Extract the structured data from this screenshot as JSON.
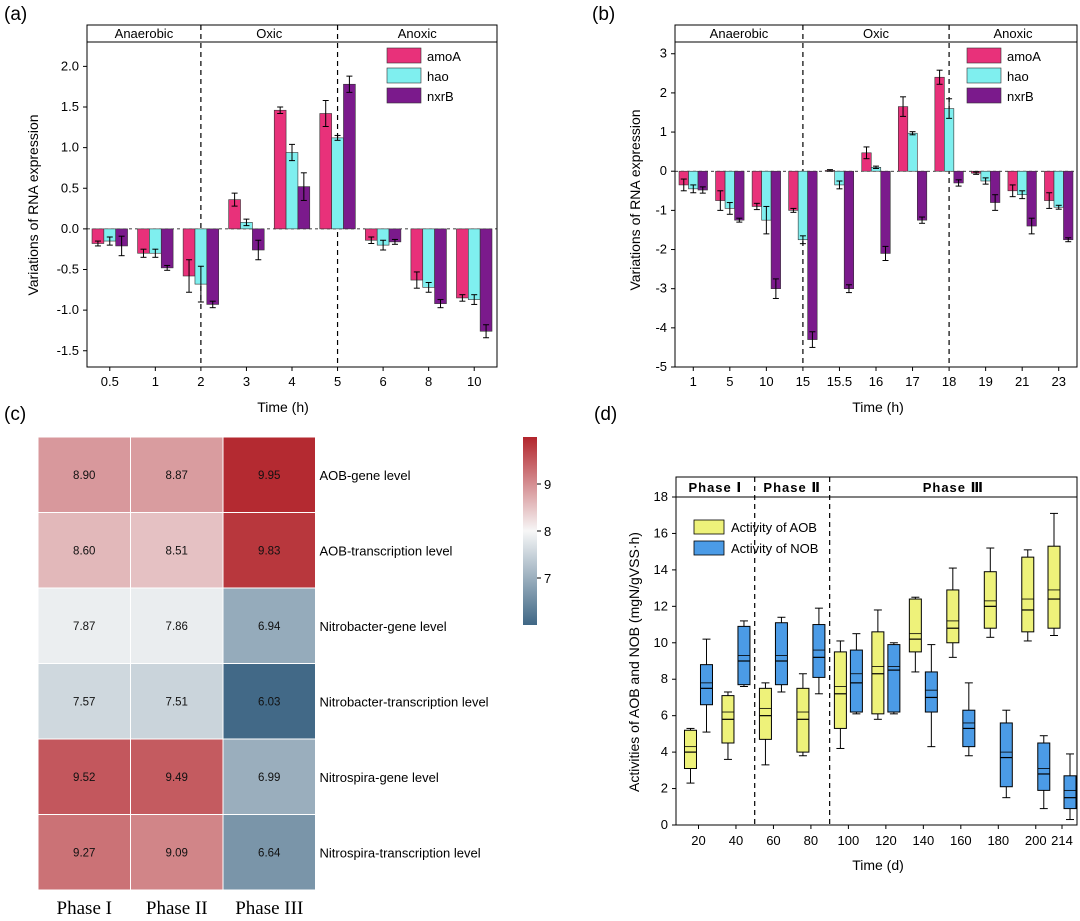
{
  "chart_data": [
    {
      "panel_label": "(a)",
      "type": "bar",
      "xlabel": "Time (h)",
      "ylabel": "Variations of RNA expression",
      "ylim": [
        -1.7,
        2.3
      ],
      "yticks": [
        -1.5,
        -1.0,
        -0.5,
        0.0,
        0.5,
        1.0,
        1.5,
        2.0
      ],
      "ytick_labels": [
        "-1.5",
        "-1.0",
        "-0.5",
        "0.0",
        "0.5",
        "1.0",
        "1.5",
        "2.0"
      ],
      "categories": [
        "0.5",
        "1",
        "2",
        "3",
        "4",
        "5",
        "6",
        "8",
        "10"
      ],
      "phases": [
        {
          "name": "Anaerobic",
          "start_index": 0,
          "end_index": 2
        },
        {
          "name": "Oxic",
          "start_index": 2,
          "end_index": 5
        },
        {
          "name": "Anoxic",
          "start_index": 5,
          "end_index": 8
        }
      ],
      "legend_position": "top-right",
      "series": [
        {
          "name": "amoA",
          "color": "#E8317A",
          "values": [
            -0.18,
            -0.3,
            -0.58,
            0.36,
            1.46,
            1.42,
            -0.14,
            -0.63,
            -0.85
          ],
          "errors": [
            0.03,
            0.05,
            0.2,
            0.08,
            0.04,
            0.16,
            0.04,
            0.1,
            0.04
          ]
        },
        {
          "name": "hao",
          "color": "#7FEFEF",
          "values": [
            -0.15,
            -0.3,
            -0.68,
            0.08,
            0.94,
            1.12,
            -0.2,
            -0.72,
            -0.87
          ],
          "errors": [
            0.05,
            0.05,
            0.22,
            0.04,
            0.1,
            0.03,
            0.06,
            0.06,
            0.06
          ]
        },
        {
          "name": "nxrB",
          "color": "#7B1A8C",
          "values": [
            -0.21,
            -0.48,
            -0.93,
            -0.26,
            0.52,
            1.78,
            -0.16,
            -0.92,
            -1.26
          ],
          "errors": [
            0.12,
            0.03,
            0.04,
            0.12,
            0.17,
            0.1,
            0.03,
            0.05,
            0.08
          ]
        }
      ]
    },
    {
      "panel_label": "(b)",
      "type": "bar",
      "xlabel": "Time (h)",
      "ylabel": "Variations of RNA expression",
      "ylim": [
        -5,
        3.3
      ],
      "yticks": [
        -5,
        -4,
        -3,
        -2,
        -1,
        0,
        1,
        2,
        3
      ],
      "ytick_labels": [
        "-5",
        "-4",
        "-3",
        "-2",
        "-1",
        "0",
        "1",
        "2",
        "3"
      ],
      "categories": [
        "1",
        "5",
        "10",
        "15",
        "15.5",
        "16",
        "17",
        "18",
        "19",
        "21",
        "23"
      ],
      "phases": [
        {
          "name": "Anaerobic",
          "start_index": 0,
          "end_index": 3
        },
        {
          "name": "Oxic",
          "start_index": 3,
          "end_index": 7
        },
        {
          "name": "Anoxic",
          "start_index": 7,
          "end_index": 10
        }
      ],
      "legend_position": "top-right",
      "series": [
        {
          "name": "amoA",
          "color": "#E8317A",
          "values": [
            -0.35,
            -0.75,
            -0.9,
            -1.0,
            0.02,
            0.47,
            1.65,
            2.4,
            -0.05,
            -0.5,
            -0.75
          ],
          "errors": [
            0.15,
            0.25,
            0.08,
            0.05,
            0.02,
            0.15,
            0.25,
            0.18,
            0.03,
            0.15,
            0.2
          ]
        },
        {
          "name": "hao",
          "color": "#7FEFEF",
          "values": [
            -0.45,
            -0.95,
            -1.25,
            -1.75,
            -0.35,
            0.1,
            0.97,
            1.6,
            -0.25,
            -0.6,
            -0.92
          ],
          "errors": [
            0.1,
            0.15,
            0.35,
            0.1,
            0.1,
            0.03,
            0.04,
            0.25,
            0.08,
            0.1,
            0.05
          ]
        },
        {
          "name": "nxrB",
          "color": "#7B1A8C",
          "values": [
            -0.48,
            -1.25,
            -3.0,
            -4.3,
            -3.0,
            -2.1,
            -1.25,
            -0.3,
            -0.8,
            -1.4,
            -1.75
          ],
          "errors": [
            0.08,
            0.05,
            0.25,
            0.2,
            0.1,
            0.18,
            0.08,
            0.08,
            0.2,
            0.2,
            0.05
          ]
        }
      ]
    },
    {
      "panel_label": "(c)",
      "type": "heatmap",
      "columns": [
        "Phase I",
        "Phase II",
        "Phase III"
      ],
      "rows": [
        "AOB-gene level",
        "AOB-transcription level",
        "Nitrobacter-gene level",
        "Nitrobacter-transcription level",
        "Nitrospira-gene level",
        "Nitrospira-transcription level"
      ],
      "values": [
        [
          8.9,
          8.87,
          9.95
        ],
        [
          8.6,
          8.51,
          9.83
        ],
        [
          7.87,
          7.86,
          6.94
        ],
        [
          7.57,
          7.51,
          6.03
        ],
        [
          9.52,
          9.49,
          6.99
        ],
        [
          9.27,
          9.09,
          6.64
        ]
      ],
      "value_labels": [
        [
          "8.90",
          "8.87",
          "9.95"
        ],
        [
          "8.60",
          "8.51",
          "9.83"
        ],
        [
          "7.87",
          "7.86",
          "6.94"
        ],
        [
          "7.57",
          "7.51",
          "6.03"
        ],
        [
          "9.52",
          "9.49",
          "6.99"
        ],
        [
          "9.27",
          "9.09",
          "6.64"
        ]
      ],
      "colorbar": {
        "range": [
          6.0,
          10.0
        ],
        "ticks": [
          "9",
          "8",
          "7"
        ],
        "tick_values": [
          9,
          8,
          7
        ],
        "low_color": "#3F6785",
        "mid_color": "#F7F7F7",
        "high_color": "#B2252C"
      }
    },
    {
      "panel_label": "(d)",
      "type": "box",
      "xlabel": "Time (d)",
      "ylabel": "Activities of AOB and NOB (mgN/gVSS·h)",
      "ylim": [
        0,
        18
      ],
      "yticks": [
        0,
        2,
        4,
        6,
        8,
        10,
        12,
        14,
        16,
        18
      ],
      "ytick_labels": [
        "0",
        "2",
        "4",
        "6",
        "8",
        "10",
        "12",
        "14",
        "16",
        "18"
      ],
      "xticks": [
        20,
        40,
        60,
        80,
        100,
        120,
        140,
        160,
        180,
        200,
        214
      ],
      "xtick_labels": [
        "20",
        "40",
        "60",
        "80",
        "100",
        "120",
        "140",
        "160",
        "180",
        "200",
        "214"
      ],
      "phases": [
        {
          "name": "Phase Ⅰ",
          "start": 10,
          "end": 50
        },
        {
          "name": "Phase Ⅱ",
          "start": 50,
          "end": 90
        },
        {
          "name": "Phase Ⅲ",
          "start": 90,
          "end": 222
        }
      ],
      "legend_position": "top-left",
      "series": [
        {
          "name": "Activity of AOB",
          "color": "#EEF27A",
          "boxes": [
            {
              "x": 20,
              "min": 2.3,
              "q1": 3.1,
              "median": 4.0,
              "mean": 4.3,
              "q3": 5.2,
              "max": 5.3
            },
            {
              "x": 40,
              "min": 3.6,
              "q1": 4.5,
              "median": 5.8,
              "mean": 6.2,
              "q3": 7.1,
              "max": 7.3
            },
            {
              "x": 60,
              "min": 3.3,
              "q1": 4.7,
              "median": 6.0,
              "mean": 6.4,
              "q3": 7.5,
              "max": 7.8
            },
            {
              "x": 80,
              "min": 3.8,
              "q1": 4.0,
              "median": 5.8,
              "mean": 6.2,
              "q3": 7.5,
              "max": 8.3
            },
            {
              "x": 100,
              "min": 4.2,
              "q1": 5.3,
              "median": 7.2,
              "mean": 7.6,
              "q3": 9.5,
              "max": 10.1
            },
            {
              "x": 120,
              "min": 5.8,
              "q1": 6.1,
              "median": 8.3,
              "mean": 8.7,
              "q3": 10.6,
              "max": 11.8
            },
            {
              "x": 140,
              "min": 8.4,
              "q1": 9.5,
              "median": 10.2,
              "mean": 10.5,
              "q3": 12.4,
              "max": 12.5
            },
            {
              "x": 160,
              "min": 9.2,
              "q1": 10.0,
              "median": 10.8,
              "mean": 11.2,
              "q3": 12.9,
              "max": 14.1
            },
            {
              "x": 180,
              "min": 10.3,
              "q1": 10.8,
              "median": 12.0,
              "mean": 12.3,
              "q3": 13.9,
              "max": 15.2
            },
            {
              "x": 200,
              "min": 10.1,
              "q1": 10.6,
              "median": 11.8,
              "mean": 12.4,
              "q3": 14.7,
              "max": 15.1
            },
            {
              "x": 214,
              "min": 10.4,
              "q1": 10.8,
              "median": 12.4,
              "mean": 12.9,
              "q3": 15.3,
              "max": 17.1
            }
          ]
        },
        {
          "name": "Activity of NOB",
          "color": "#4B9BE6",
          "boxes": [
            {
              "x": 20,
              "min": 5.1,
              "q1": 6.6,
              "median": 7.5,
              "mean": 7.8,
              "q3": 8.8,
              "max": 10.2
            },
            {
              "x": 40,
              "min": 7.6,
              "q1": 7.7,
              "median": 9.0,
              "mean": 9.3,
              "q3": 10.9,
              "max": 11.2
            },
            {
              "x": 60,
              "min": 7.3,
              "q1": 7.7,
              "median": 9.0,
              "mean": 9.3,
              "q3": 11.1,
              "max": 11.4
            },
            {
              "x": 80,
              "min": 7.2,
              "q1": 8.1,
              "median": 9.2,
              "mean": 9.6,
              "q3": 11.0,
              "max": 11.9
            },
            {
              "x": 100,
              "min": 6.1,
              "q1": 6.2,
              "median": 7.8,
              "mean": 8.3,
              "q3": 9.6,
              "max": 10.5
            },
            {
              "x": 120,
              "min": 6.1,
              "q1": 6.2,
              "median": 8.5,
              "mean": 8.7,
              "q3": 9.9,
              "max": 10.0
            },
            {
              "x": 140,
              "min": 4.3,
              "q1": 6.2,
              "median": 7.0,
              "mean": 7.4,
              "q3": 8.4,
              "max": 9.9
            },
            {
              "x": 160,
              "min": 3.8,
              "q1": 4.3,
              "median": 5.3,
              "mean": 5.6,
              "q3": 6.3,
              "max": 7.8
            },
            {
              "x": 180,
              "min": 1.5,
              "q1": 2.1,
              "median": 3.7,
              "mean": 4.0,
              "q3": 5.6,
              "max": 6.3
            },
            {
              "x": 200,
              "min": 0.9,
              "q1": 1.9,
              "median": 2.8,
              "mean": 3.1,
              "q3": 4.5,
              "max": 4.9
            },
            {
              "x": 214,
              "min": 0.3,
              "q1": 0.9,
              "median": 1.5,
              "mean": 1.9,
              "q3": 2.7,
              "max": 3.9
            }
          ]
        }
      ]
    }
  ]
}
